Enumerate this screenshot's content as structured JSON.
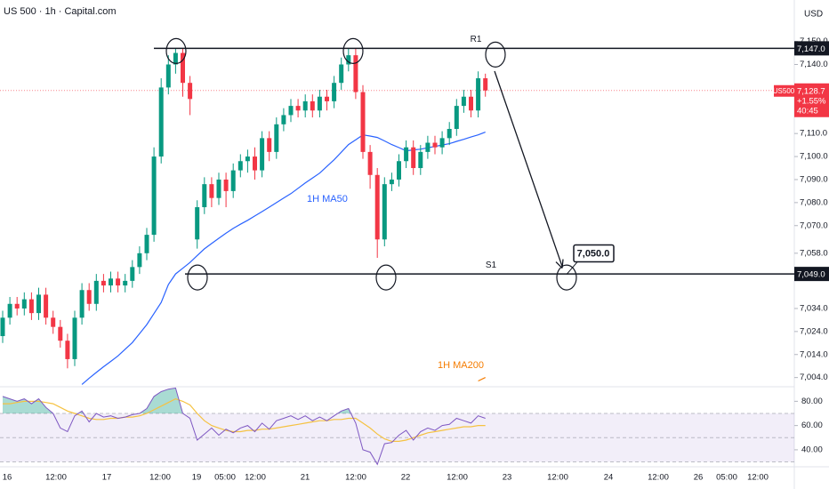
{
  "chart_data": {
    "type": "candlestick",
    "title": "US 500 · 1h · Capital.com",
    "currency": "USD",
    "up_color": "#089981",
    "down_color": "#f23645",
    "open": [
      7022,
      7030,
      7036,
      7034,
      7038,
      7032,
      7040,
      7030,
      7026,
      7020,
      7012,
      7030,
      7042,
      7036,
      7046,
      7044,
      7047,
      7044,
      7046,
      7052,
      7058,
      7066,
      7100,
      7130,
      7140,
      7145,
      7132,
      7064,
      7078,
      7088,
      7082,
      7090,
      7085,
      7094,
      7098,
      7100,
      7094,
      7108,
      7102,
      7114,
      7118,
      7122,
      7120,
      7124,
      7120,
      7126,
      7124,
      7132,
      7140,
      7144,
      7128,
      7102,
      7092,
      7064,
      7088,
      7090,
      7098,
      7104,
      7095,
      7102,
      7106,
      7104,
      7108,
      7112,
      7122,
      7126,
      7120,
      7134
    ],
    "high": [
      7033,
      7039,
      7039,
      7041,
      7041,
      7043,
      7043,
      7033,
      7029,
      7023,
      7033,
      7045,
      7045,
      7049,
      7049,
      7050,
      7050,
      7049,
      7055,
      7061,
      7069,
      7104,
      7134,
      7144,
      7147,
      7147,
      7135,
      7081,
      7091,
      7091,
      7093,
      7093,
      7097,
      7101,
      7103,
      7104,
      7111,
      7111,
      7117,
      7121,
      7125,
      7125,
      7127,
      7127,
      7129,
      7129,
      7135,
      7143,
      7147,
      7147,
      7131,
      7105,
      7095,
      7091,
      7093,
      7101,
      7107,
      7107,
      7105,
      7109,
      7109,
      7111,
      7115,
      7125,
      7129,
      7129,
      7137,
      7136
    ],
    "low": [
      7019,
      7027,
      7031,
      7031,
      7029,
      7029,
      7027,
      7023,
      7017,
      7008,
      7009,
      7027,
      7033,
      7033,
      7041,
      7041,
      7041,
      7041,
      7043,
      7049,
      7055,
      7063,
      7097,
      7127,
      7136,
      7126,
      7118,
      7060,
      7075,
      7078,
      7079,
      7078,
      7082,
      7091,
      7093,
      7090,
      7091,
      7098,
      7099,
      7111,
      7115,
      7117,
      7117,
      7117,
      7117,
      7120,
      7121,
      7129,
      7137,
      7125,
      7099,
      7086,
      7056,
      7061,
      7085,
      7087,
      7095,
      7092,
      7092,
      7099,
      7101,
      7101,
      7105,
      7109,
      7119,
      7117,
      7117,
      7126
    ],
    "close": [
      7030,
      7036,
      7034,
      7038,
      7032,
      7040,
      7030,
      7026,
      7020,
      7012,
      7030,
      7042,
      7036,
      7046,
      7044,
      7047,
      7044,
      7046,
      7052,
      7058,
      7066,
      7100,
      7130,
      7140,
      7145,
      7132,
      7125,
      7078,
      7088,
      7082,
      7090,
      7085,
      7094,
      7098,
      7100,
      7094,
      7108,
      7102,
      7114,
      7118,
      7122,
      7120,
      7124,
      7120,
      7126,
      7124,
      7132,
      7140,
      7144,
      7128,
      7102,
      7092,
      7064,
      7088,
      7090,
      7098,
      7104,
      7095,
      7102,
      7106,
      7104,
      7108,
      7112,
      7122,
      7126,
      7120,
      7134,
      7128.7
    ],
    "ylim": [
      7000,
      7168
    ],
    "yticks": [
      {
        "value": 7150,
        "label": "7,150.0"
      },
      {
        "value": 7140,
        "label": "7,140.0"
      },
      {
        "value": 7110,
        "label": "7,110.0"
      },
      {
        "value": 7100,
        "label": "7,100.0"
      },
      {
        "value": 7090,
        "label": "7,090.0"
      },
      {
        "value": 7080,
        "label": "7,080.0"
      },
      {
        "value": 7070,
        "label": "7,070.0"
      },
      {
        "value": 7058,
        "label": "7,058.0"
      },
      {
        "value": 7034,
        "label": "7,034.0"
      },
      {
        "value": 7024,
        "label": "7,024.0"
      },
      {
        "value": 7014,
        "label": "7,014.0"
      },
      {
        "value": 7004,
        "label": "7,004.0"
      }
    ],
    "x_labels": [
      "16",
      "12:00",
      "17",
      "12:00",
      "19",
      "05:00",
      "12:00",
      "21",
      "12:00",
      "22",
      "12:00",
      "23",
      "12:00",
      "24",
      "12:00",
      "26",
      "05:00",
      "12:00"
    ],
    "lines": [
      {
        "name": "1H MA50",
        "color": "#2962ff",
        "values": [
          null,
          null,
          null,
          null,
          null,
          null,
          null,
          null,
          null,
          null,
          null,
          7001,
          7003.7,
          7006.2,
          7008.7,
          7011,
          7013.4,
          7016.3,
          7019.2,
          7023.1,
          7027,
          7031.8,
          7036.6,
          7044.4,
          7049,
          7051.5,
          7054,
          7057,
          7059.9,
          7062.2,
          7064.5,
          7066.7,
          7068.8,
          7070.6,
          7072.3,
          7074.2,
          7076.1,
          7078,
          7080,
          7082,
          7083.9,
          7086.2,
          7088.5,
          7090.7,
          7092.8,
          7095.7,
          7098.6,
          7101.9,
          7105.2,
          7107.3,
          7109.4,
          7108.9,
          7108.3,
          7106.8,
          7105.2,
          7103.9,
          7102.5,
          7102.9,
          7103.2,
          7103.8,
          7104.4,
          7105,
          7105.6,
          7106.6,
          7107.5,
          7108.5,
          7109.4,
          7110.6
        ]
      },
      {
        "name": "1H MA200",
        "color": "#f57c00",
        "values": [
          null,
          null,
          null,
          null,
          null,
          null,
          null,
          null,
          null,
          null,
          null,
          null,
          null,
          null,
          null,
          null,
          null,
          null,
          null,
          null,
          null,
          null,
          null,
          null,
          null,
          null,
          null,
          null,
          null,
          null,
          null,
          null,
          null,
          null,
          null,
          null,
          null,
          null,
          null,
          null,
          null,
          null,
          null,
          null,
          null,
          null,
          null,
          null,
          null,
          null,
          null,
          null,
          null,
          null,
          null,
          null,
          null,
          null,
          null,
          null,
          null,
          null,
          null,
          null,
          null,
          null,
          7002.5,
          7004
        ]
      }
    ],
    "levels": [
      {
        "name": "R1",
        "value": 7147,
        "label": "7,147.0"
      },
      {
        "name": "S1",
        "value": 7049,
        "label": "7,049.0"
      }
    ],
    "target": {
      "value": 7050,
      "label": "7,050.0"
    },
    "last": {
      "symbol": "US500",
      "value": 7128.7,
      "label": "7,128.7",
      "change": "+1.55%",
      "countdown": "40:45"
    },
    "rsi": {
      "color": "#7e57c2",
      "ma_color": "#f5c242",
      "values": [
        84,
        82,
        80,
        82,
        78,
        82,
        75,
        70,
        58,
        55,
        68,
        72,
        63,
        70,
        67,
        68,
        66,
        67,
        69,
        70,
        74,
        84,
        88,
        90,
        91,
        70,
        66,
        48,
        53,
        58,
        52,
        57,
        54,
        58,
        60,
        55,
        62,
        57,
        64,
        66,
        68,
        65,
        68,
        64,
        67,
        64,
        68,
        72,
        74,
        62,
        40,
        38,
        28,
        45,
        46,
        52,
        56,
        48,
        55,
        58,
        56,
        60,
        61,
        66,
        64,
        62,
        68,
        66
      ],
      "ma": [
        78,
        78,
        79,
        80,
        80,
        80,
        79,
        78,
        75,
        72,
        70,
        68,
        66,
        65,
        65,
        66,
        66,
        67,
        67,
        68,
        70,
        73,
        76,
        79,
        82,
        80,
        77,
        70,
        64,
        60,
        58,
        56,
        55,
        55,
        56,
        56,
        57,
        57,
        58,
        59,
        60,
        61,
        62,
        63,
        64,
        64,
        65,
        65,
        66,
        66,
        62,
        58,
        53,
        49,
        47,
        47,
        48,
        50,
        52,
        54,
        55,
        56,
        57,
        58,
        59,
        59,
        60,
        60
      ],
      "ylim": [
        26,
        92
      ],
      "yticks": [
        {
          "value": 80,
          "label": "80.00"
        },
        {
          "value": 60,
          "label": "60.00"
        },
        {
          "value": 40,
          "label": "40.00"
        }
      ],
      "levels": [
        70,
        50,
        30
      ]
    }
  }
}
